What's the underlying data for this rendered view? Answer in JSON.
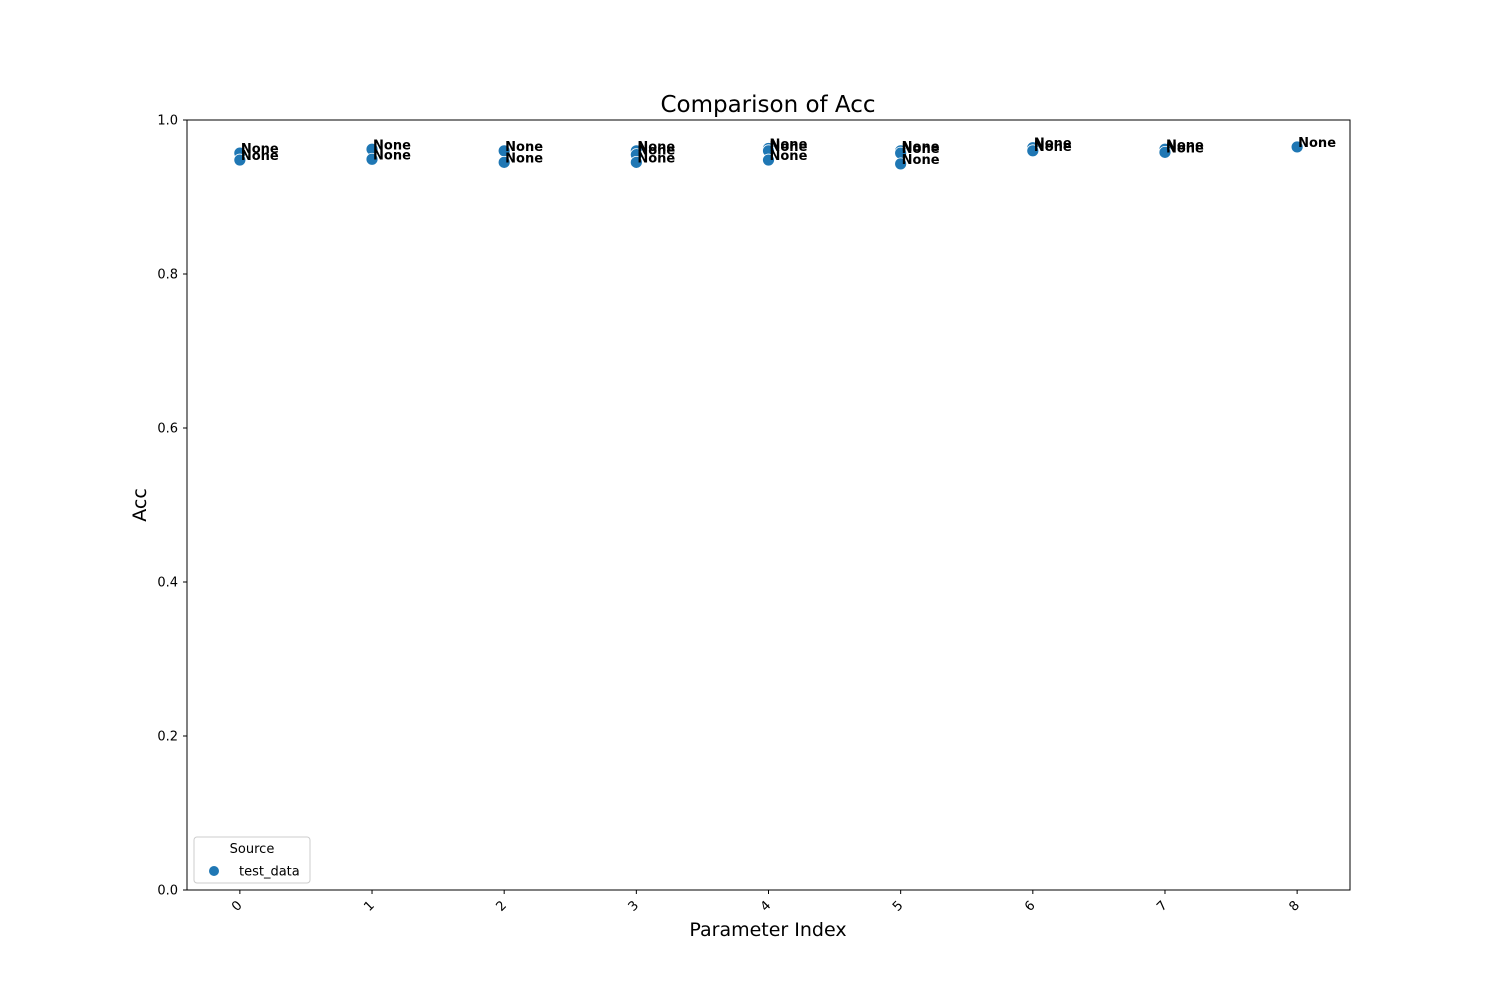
{
  "chart_data": {
    "type": "scatter",
    "title": "Comparison of Acc",
    "xlabel": "Parameter Index",
    "ylabel": "Acc",
    "xlim": [
      -0.4,
      8.4
    ],
    "ylim": [
      0.0,
      1.0
    ],
    "x_ticks": [
      "0",
      "1",
      "2",
      "3",
      "4",
      "5",
      "6",
      "7",
      "8"
    ],
    "y_ticks": [
      "0.0",
      "0.2",
      "0.4",
      "0.6",
      "0.8",
      "1.0"
    ],
    "grid": false,
    "legend": {
      "title": "Source",
      "placement": "lower-left",
      "entries": [
        "test_data"
      ]
    },
    "series": [
      {
        "name": "test_data",
        "color": "#1f77b4",
        "points": [
          {
            "x": 0,
            "y": 0.957,
            "label": "None"
          },
          {
            "x": 0,
            "y": 0.948,
            "label": "None"
          },
          {
            "x": 1,
            "y": 0.962,
            "label": "None"
          },
          {
            "x": 1,
            "y": 0.949,
            "label": "None"
          },
          {
            "x": 2,
            "y": 0.96,
            "label": "None"
          },
          {
            "x": 2,
            "y": 0.945,
            "label": "None"
          },
          {
            "x": 3,
            "y": 0.96,
            "label": "None"
          },
          {
            "x": 3,
            "y": 0.955,
            "label": "None"
          },
          {
            "x": 3,
            "y": 0.945,
            "label": "None"
          },
          {
            "x": 4,
            "y": 0.963,
            "label": "None"
          },
          {
            "x": 4,
            "y": 0.96,
            "label": "None"
          },
          {
            "x": 4,
            "y": 0.948,
            "label": "None"
          },
          {
            "x": 5,
            "y": 0.96,
            "label": "None"
          },
          {
            "x": 5,
            "y": 0.957,
            "label": "None"
          },
          {
            "x": 5,
            "y": 0.943,
            "label": "None"
          },
          {
            "x": 6,
            "y": 0.964,
            "label": "None"
          },
          {
            "x": 6,
            "y": 0.96,
            "label": "None"
          },
          {
            "x": 7,
            "y": 0.962,
            "label": "None"
          },
          {
            "x": 7,
            "y": 0.958,
            "label": "None"
          },
          {
            "x": 8,
            "y": 0.965,
            "label": "None"
          }
        ]
      }
    ]
  }
}
